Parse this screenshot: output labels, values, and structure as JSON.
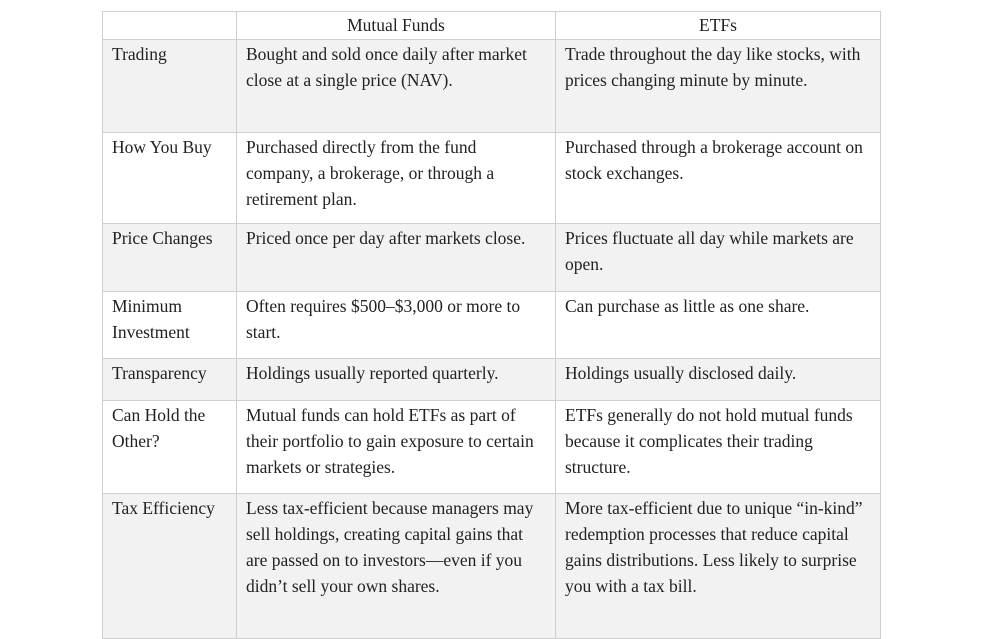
{
  "table": {
    "headers": [
      "",
      "Mutual Funds",
      "ETFs"
    ],
    "rows": [
      {
        "label": "Trading",
        "mutual_funds": "Bought and sold once daily after market close at a single price (NAV).",
        "etfs": "Trade throughout the day like stocks, with prices changing minute by minute."
      },
      {
        "label": "How You Buy",
        "mutual_funds": "Purchased directly from the fund company, a brokerage, or through a retirement plan.",
        "etfs": "Purchased through a brokerage account on stock exchanges."
      },
      {
        "label": "Price Changes",
        "mutual_funds": "Priced once per day after markets close.",
        "etfs": "Prices fluctuate all day while markets are open."
      },
      {
        "label": "Minimum Investment",
        "mutual_funds": "Often requires $500–$3,000 or more to start.",
        "etfs": "Can purchase as little as one share."
      },
      {
        "label": "Transparency",
        "mutual_funds": "Holdings usually reported quarterly.",
        "etfs": "Holdings usually disclosed daily."
      },
      {
        "label": "Can Hold the Other?",
        "mutual_funds": "Mutual funds can hold ETFs as part of their portfolio to gain exposure to certain markets or strategies.",
        "etfs": "ETFs generally do not hold mutual funds because it complicates their trading structure."
      },
      {
        "label": "Tax Efficiency",
        "mutual_funds": "Less tax-efficient because managers may sell holdings, creating capital gains that are passed on to investors—even if you didn’t sell your own shares.",
        "etfs": "More tax-efficient due to unique “in-kind” redemption processes that reduce capital gains distributions. Less likely to surprise you with a tax bill."
      }
    ]
  }
}
